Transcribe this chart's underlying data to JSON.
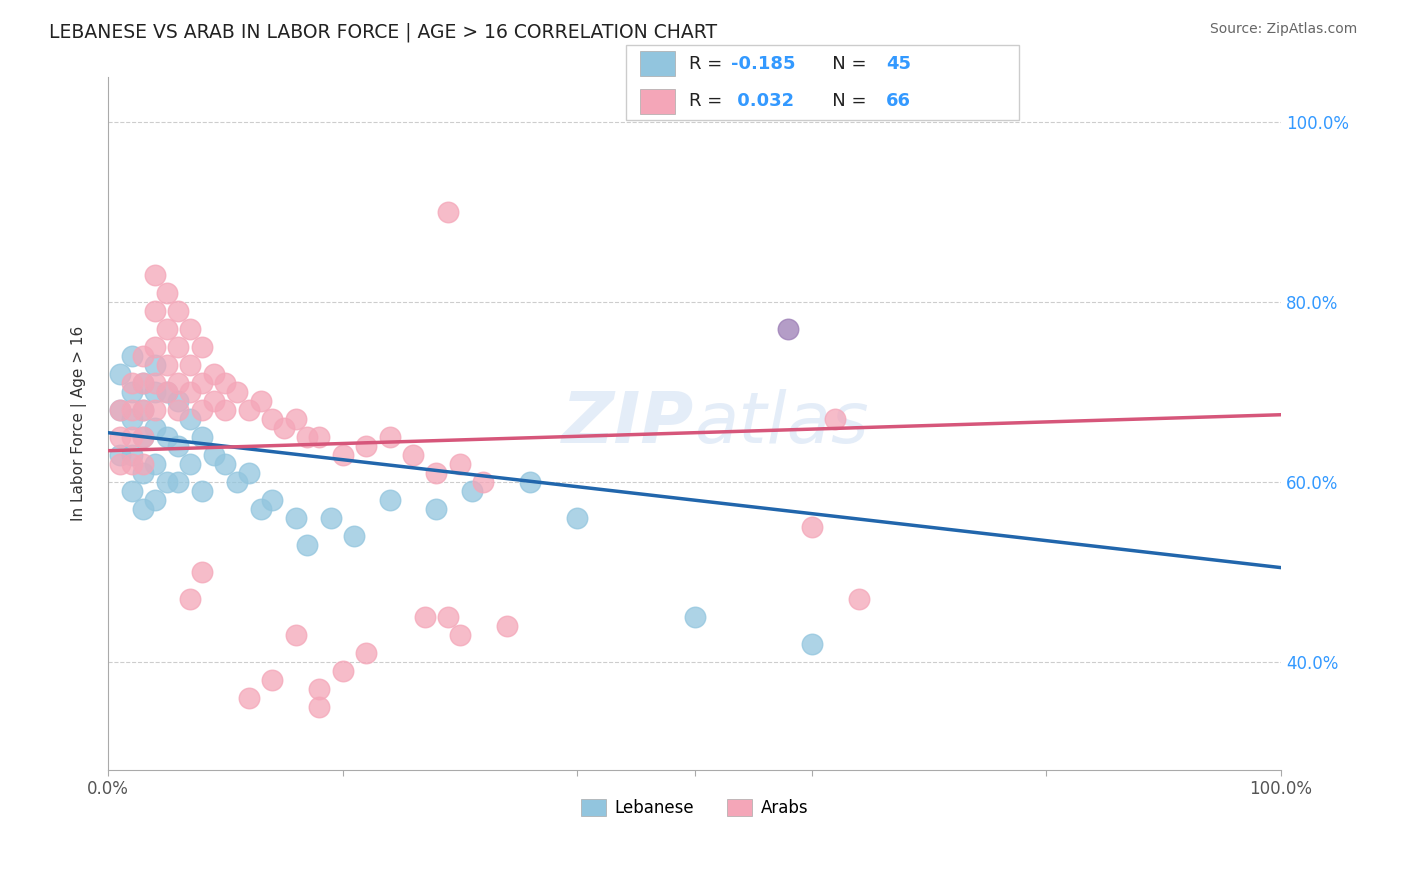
{
  "title": "LEBANESE VS ARAB IN LABOR FORCE | AGE > 16 CORRELATION CHART",
  "source_text": "Source: ZipAtlas.com",
  "ylabel": "In Labor Force | Age > 16",
  "xlim": [
    0,
    1
  ],
  "ylim": [
    0.28,
    1.05
  ],
  "right_yticklabels": [
    "40.0%",
    "60.0%",
    "80.0%",
    "100.0%"
  ],
  "right_yticks": [
    0.4,
    0.6,
    0.8,
    1.0
  ],
  "watermark": "ZIPatlas",
  "blue_color": "#92c5de",
  "pink_color": "#f4a6b8",
  "blue_line_color": "#2166ac",
  "pink_line_color": "#d6567a",
  "background_color": "#ffffff",
  "grid_color": "#c8c8c8",
  "blue_line_x0": 0.0,
  "blue_line_y0": 0.655,
  "blue_line_x1": 1.0,
  "blue_line_y1": 0.505,
  "pink_line_x0": 0.0,
  "pink_line_y0": 0.635,
  "pink_line_x1": 1.0,
  "pink_line_y1": 0.675,
  "blue_x": [
    0.01,
    0.01,
    0.01,
    0.02,
    0.02,
    0.02,
    0.02,
    0.02,
    0.03,
    0.03,
    0.03,
    0.03,
    0.03,
    0.04,
    0.04,
    0.04,
    0.04,
    0.04,
    0.05,
    0.05,
    0.05,
    0.06,
    0.06,
    0.06,
    0.07,
    0.07,
    0.08,
    0.08,
    0.09,
    0.1,
    0.11,
    0.12,
    0.13,
    0.14,
    0.16,
    0.17,
    0.19,
    0.21,
    0.24,
    0.28,
    0.31,
    0.36,
    0.4,
    0.5,
    0.6
  ],
  "blue_y": [
    0.72,
    0.68,
    0.63,
    0.74,
    0.7,
    0.67,
    0.63,
    0.59,
    0.71,
    0.68,
    0.65,
    0.61,
    0.57,
    0.73,
    0.7,
    0.66,
    0.62,
    0.58,
    0.7,
    0.65,
    0.6,
    0.69,
    0.64,
    0.6,
    0.67,
    0.62,
    0.65,
    0.59,
    0.63,
    0.62,
    0.6,
    0.61,
    0.57,
    0.58,
    0.56,
    0.53,
    0.56,
    0.54,
    0.58,
    0.57,
    0.59,
    0.6,
    0.56,
    0.45,
    0.42
  ],
  "pink_x": [
    0.01,
    0.01,
    0.01,
    0.02,
    0.02,
    0.02,
    0.02,
    0.03,
    0.03,
    0.03,
    0.03,
    0.03,
    0.04,
    0.04,
    0.04,
    0.04,
    0.04,
    0.05,
    0.05,
    0.05,
    0.05,
    0.06,
    0.06,
    0.06,
    0.06,
    0.07,
    0.07,
    0.07,
    0.08,
    0.08,
    0.08,
    0.09,
    0.09,
    0.1,
    0.1,
    0.11,
    0.12,
    0.13,
    0.14,
    0.15,
    0.16,
    0.17,
    0.18,
    0.2,
    0.22,
    0.24,
    0.26,
    0.28,
    0.3,
    0.32,
    0.34,
    0.6,
    0.62,
    0.64,
    0.2,
    0.22,
    0.14,
    0.16,
    0.18,
    0.27,
    0.29,
    0.12,
    0.3,
    0.18,
    0.07,
    0.08
  ],
  "pink_y": [
    0.68,
    0.65,
    0.62,
    0.71,
    0.68,
    0.65,
    0.62,
    0.74,
    0.71,
    0.68,
    0.65,
    0.62,
    0.83,
    0.79,
    0.75,
    0.71,
    0.68,
    0.81,
    0.77,
    0.73,
    0.7,
    0.79,
    0.75,
    0.71,
    0.68,
    0.77,
    0.73,
    0.7,
    0.75,
    0.71,
    0.68,
    0.72,
    0.69,
    0.71,
    0.68,
    0.7,
    0.68,
    0.69,
    0.67,
    0.66,
    0.67,
    0.65,
    0.65,
    0.63,
    0.64,
    0.65,
    0.63,
    0.61,
    0.62,
    0.6,
    0.44,
    0.55,
    0.67,
    0.47,
    0.39,
    0.41,
    0.38,
    0.43,
    0.37,
    0.45,
    0.45,
    0.36,
    0.43,
    0.35,
    0.47,
    0.5
  ],
  "outlier_pink_x": [
    0.29
  ],
  "outlier_pink_y": [
    0.9
  ],
  "outlier_blue_purple_x": [
    0.58
  ],
  "outlier_blue_purple_y": [
    0.77
  ]
}
